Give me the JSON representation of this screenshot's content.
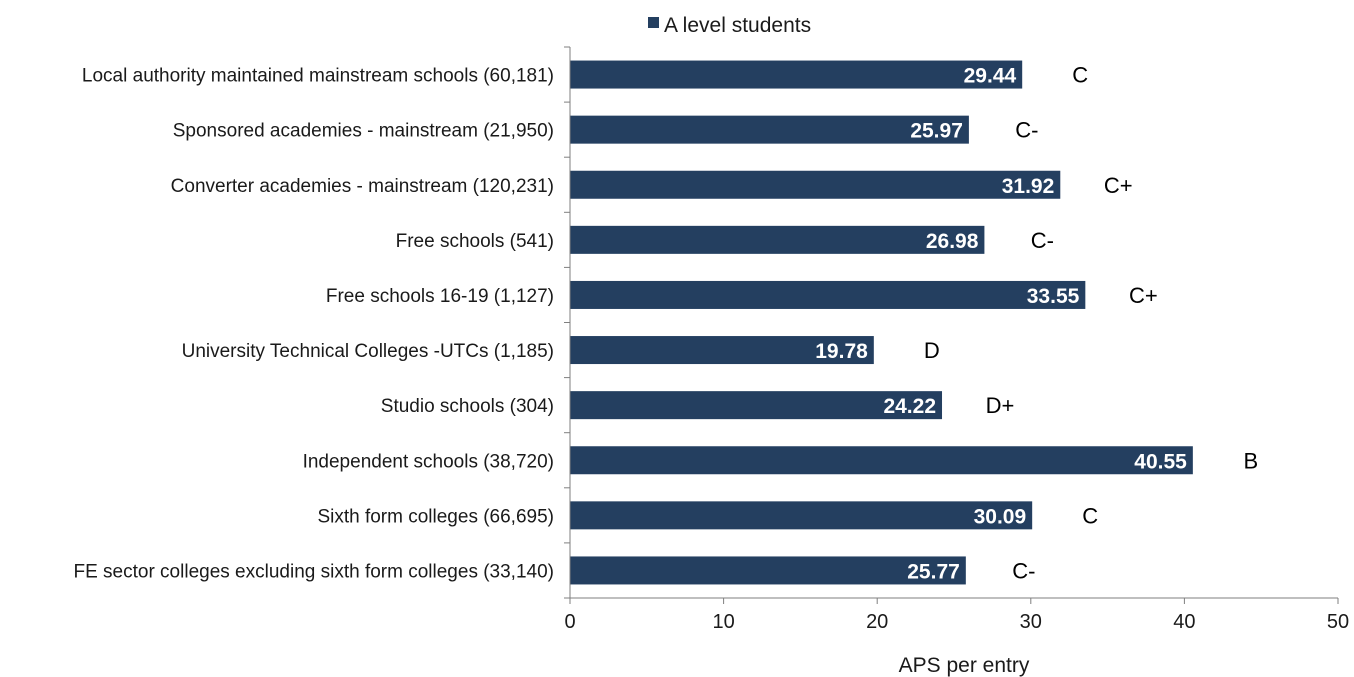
{
  "chart_data": {
    "type": "bar",
    "orientation": "horizontal",
    "categories": [
      "Local authority maintained mainstream schools (60,181)",
      "Sponsored academies - mainstream (21,950)",
      "Converter academies - mainstream (120,231)",
      "Free schools (541)",
      "Free schools 16-19 (1,127)",
      "University Technical Colleges -UTCs (1,185)",
      "Studio schools (304)",
      "Independent schools (38,720)",
      "Sixth form colleges (66,695)",
      "FE sector colleges excluding sixth form colleges (33,140)"
    ],
    "series": [
      {
        "name": "A level students",
        "color": "#243f60",
        "values": [
          29.44,
          25.97,
          31.92,
          26.98,
          33.55,
          19.78,
          24.22,
          40.55,
          30.09,
          25.77
        ],
        "value_labels": [
          "29.44",
          "25.97",
          "31.92",
          "26.98",
          "33.55",
          "19.78",
          "24.22",
          "40.55",
          "30.09",
          "25.77"
        ],
        "grades": [
          "C",
          "C-",
          "C+",
          "C-",
          "C+",
          "D",
          "D+",
          "B",
          "C",
          "C-"
        ]
      }
    ],
    "xlabel": "APS per entry",
    "ylabel": "",
    "xlim": [
      0,
      50
    ],
    "xticks": [
      "0",
      "10",
      "20",
      "30",
      "40",
      "50"
    ],
    "grid": false,
    "legend": {
      "position": "top",
      "entries": [
        "A level students"
      ]
    }
  }
}
